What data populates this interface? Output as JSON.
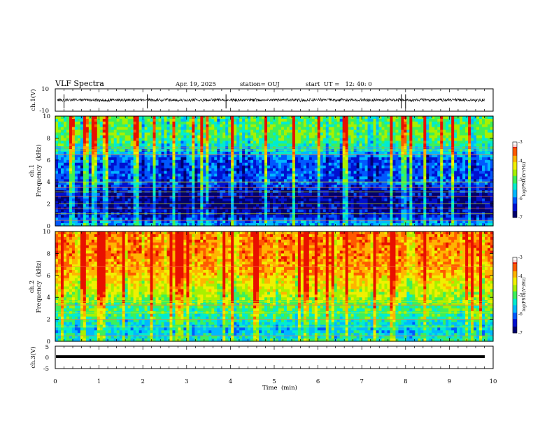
{
  "header": {
    "title": "VLF Spectra",
    "date": "Apr. 19, 2025",
    "station": "station= OUJ",
    "start": "start  UT =   12: 40: 0"
  },
  "colors": {
    "palette": [
      "#00006e",
      "#0010d0",
      "#0058ff",
      "#00b8ff",
      "#00ecd0",
      "#3cf05a",
      "#a8f000",
      "#f0f000",
      "#ffb400",
      "#ff5a00",
      "#e81000",
      "#ffffff"
    ],
    "trace": "#000000"
  },
  "chart_data": [
    {
      "name": "ch1-waveform",
      "type": "line",
      "ylabel": "ch.1(V)",
      "ylim": [
        -10,
        10
      ],
      "yticks": [
        "10",
        "-10"
      ],
      "xlim": [
        0,
        10
      ],
      "baseline": 0,
      "spikes": [
        0.2,
        2.1,
        3.9,
        7.9,
        8.0
      ]
    },
    {
      "name": "ch1-spectrogram",
      "type": "heatmap",
      "ylabel": "ch.1\nFrequency (kHz)",
      "ylabel_lines": [
        "ch.1",
        "Frequency  (kHz)"
      ],
      "ylim": [
        0,
        10
      ],
      "yticks": [
        "0",
        "2",
        "4",
        "6",
        "8",
        "10"
      ],
      "xlim": [
        0,
        10
      ],
      "colorbar": {
        "label": "log(PSD)(V²/Hz)",
        "range": [
          -7,
          -3
        ],
        "ticks": [
          "-3",
          "-4",
          "-5",
          "-6",
          "-7"
        ]
      },
      "profile_freq_khz": [
        0,
        1,
        2,
        3,
        4,
        5,
        6,
        7,
        8,
        9,
        10
      ],
      "profile_level": [
        -5.6,
        -6.5,
        -6.7,
        -6.6,
        -6.1,
        -6.2,
        -6.1,
        -5.4,
        -4.9,
        -4.9,
        -5.0
      ],
      "lines_khz": [
        0.5,
        1.1,
        1.6,
        2.0,
        2.7,
        3.1,
        3.5,
        4.0,
        6.5,
        6.9,
        7.1
      ]
    },
    {
      "name": "ch2-spectrogram",
      "type": "heatmap",
      "ylabel": "ch.2\nFrequency (kHz)",
      "ylabel_lines": [
        "ch.2",
        "Frequency  (kHz)"
      ],
      "ylim": [
        0,
        10
      ],
      "yticks": [
        "0",
        "2",
        "4",
        "6",
        "8",
        "10"
      ],
      "xlim": [
        0,
        10
      ],
      "colorbar": {
        "label": "log(PSD)(V²/Hz)",
        "range": [
          -7,
          -3
        ],
        "ticks": [
          "-3",
          "-4",
          "-5",
          "-6",
          "-7"
        ]
      },
      "profile_freq_khz": [
        0,
        1,
        2,
        3,
        4,
        5,
        6,
        7,
        8,
        9,
        10
      ],
      "profile_level": [
        -5.2,
        -5.6,
        -5.2,
        -5.0,
        -4.6,
        -4.3,
        -4.0,
        -3.8,
        -3.7,
        -3.7,
        -3.7
      ],
      "lines_khz": [
        0.5,
        1.3,
        2.0,
        2.6,
        3.3,
        3.6,
        6.8
      ]
    },
    {
      "name": "ch3-waveform",
      "type": "line",
      "ylabel": "ch.3(V)",
      "ylim": [
        -5,
        5
      ],
      "yticks": [
        "5",
        "0",
        "-5"
      ],
      "xlim": [
        0,
        10
      ],
      "baseline": 0
    }
  ],
  "xaxis": {
    "label": "Time  (min)",
    "ticks": [
      "0",
      "1",
      "2",
      "3",
      "4",
      "5",
      "6",
      "7",
      "8",
      "9",
      "10"
    ]
  }
}
